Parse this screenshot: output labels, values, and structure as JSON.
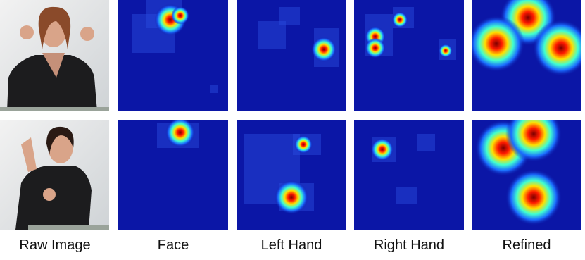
{
  "captions": [
    "Raw Image",
    "Face",
    "Left Hand",
    "Right Hand",
    "Refined"
  ]
}
